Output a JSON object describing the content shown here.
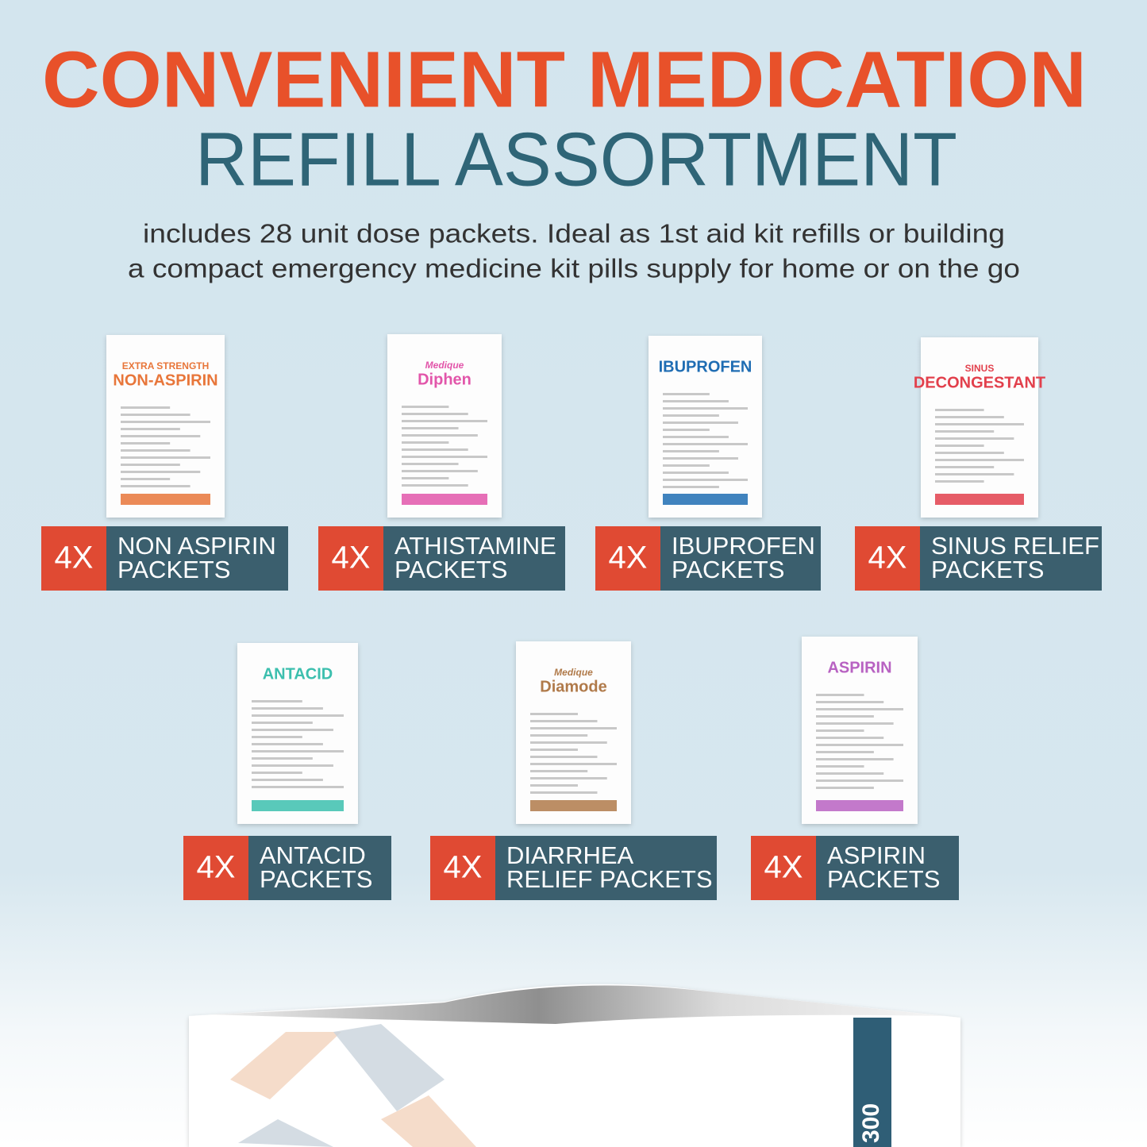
{
  "header": {
    "title": "CONVENIENT MEDICATION",
    "subtitle": "REFILL ASSORTMENT",
    "description": [
      "includes 28 unit dose packets. Ideal as 1st aid kit refills or building",
      "a compact emergency medicine kit pills supply for home or on the go"
    ]
  },
  "products": [
    {
      "quantity": "4X",
      "label": [
        "NON ASPIRIN",
        "PACKETS"
      ],
      "packet": [
        "EXTRA STRENGTH",
        "NON-ASPIRIN"
      ]
    },
    {
      "quantity": "4X",
      "label": [
        "ATHISTAMINE",
        "PACKETS"
      ],
      "packet": [
        "Medique",
        "Diphen"
      ]
    },
    {
      "quantity": "4X",
      "label": [
        "IBUPROFEN",
        "PACKETS"
      ],
      "packet": [
        "IBUPROFEN"
      ]
    },
    {
      "quantity": "4X",
      "label": [
        "SINUS RELIEF",
        "PACKETS"
      ],
      "packet": [
        "SINUS",
        "DECONGESTANT"
      ]
    },
    {
      "quantity": "4X",
      "label": [
        "ANTACID",
        "PACKETS"
      ],
      "packet": [
        "ANTACID"
      ]
    },
    {
      "quantity": "4X",
      "label": [
        "DIARRHEA",
        "RELIEF PACKETS"
      ],
      "packet": [
        "Medique",
        "Diamode"
      ]
    },
    {
      "quantity": "4X",
      "label": [
        "ASPIRIN",
        "PACKETS"
      ],
      "packet": [
        "ASPIRIN"
      ]
    }
  ],
  "bag": {
    "label": "300"
  }
}
